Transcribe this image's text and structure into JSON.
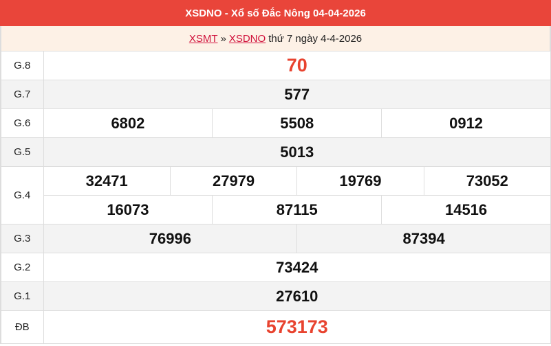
{
  "header": {
    "title": "XSDNO - Xổ số Đắc Nông 04-04-2026"
  },
  "breadcrumb": {
    "link1": "XSMT",
    "sep": "»",
    "link2": "XSDNO",
    "text": "thứ 7 ngày 4-4-2026"
  },
  "colors": {
    "header_bg": "#e9453a",
    "highlight": "#e8432f"
  },
  "prizes": {
    "g8": {
      "label": "G.8",
      "values": [
        "70"
      ]
    },
    "g7": {
      "label": "G.7",
      "values": [
        "577"
      ]
    },
    "g6": {
      "label": "G.6",
      "values": [
        "6802",
        "5508",
        "0912"
      ]
    },
    "g5": {
      "label": "G.5",
      "values": [
        "5013"
      ]
    },
    "g4": {
      "label": "G.4",
      "values": [
        "32471",
        "27979",
        "19769",
        "73052",
        "16073",
        "87115",
        "14516"
      ]
    },
    "g3": {
      "label": "G.3",
      "values": [
        "76996",
        "87394"
      ]
    },
    "g2": {
      "label": "G.2",
      "values": [
        "73424"
      ]
    },
    "g1": {
      "label": "G.1",
      "values": [
        "27610"
      ]
    },
    "db": {
      "label": "ĐB",
      "values": [
        "573173"
      ]
    }
  }
}
